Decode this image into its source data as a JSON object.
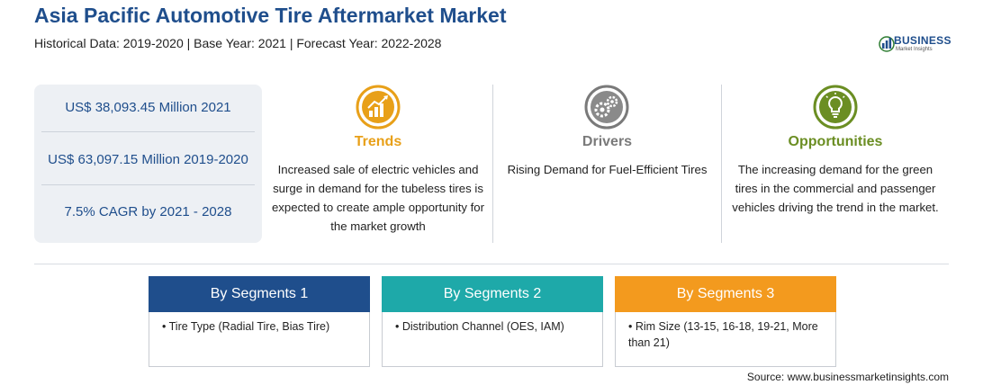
{
  "header": {
    "title": "Asia Pacific Automotive Tire Aftermarket Market",
    "subtitle": "Historical Data: 2019-2020 | Base Year: 2021 | Forecast Year: 2022-2028"
  },
  "logo": {
    "word": "BUSINESS",
    "sub": "Market Insights",
    "icon": "bar-chart-globe-icon"
  },
  "stats": [
    "US$ 38,093.45 Million 2021",
    "US$ 63,097.15 Million 2019-2020",
    "7.5% CAGR by 2021 - 2028"
  ],
  "trends": {
    "heading": "Trends",
    "color": "#e8a019",
    "icon": "trend-chart-icon",
    "text": "Increased sale of electric vehicles and surge in demand for the tubeless tires is expected to create ample opportunity for the market growth"
  },
  "drivers": {
    "heading": "Drivers",
    "color": "#7a7a7a",
    "icon": "gears-icon",
    "text": "Rising Demand for Fuel-Efficient Tires"
  },
  "opportunities": {
    "heading": "Opportunities",
    "color": "#6b8e23",
    "icon": "lightbulb-icon",
    "text": "The increasing demand for the green tires in the commercial and passenger vehicles driving the trend in the market."
  },
  "segments": [
    {
      "heading": "By Segments 1",
      "color": "#1f4e8c",
      "item": "• Tire Type (Radial Tire, Bias Tire)"
    },
    {
      "heading": "By Segments 2",
      "color": "#1ea9a9",
      "item": "• Distribution Channel (OES, IAM)"
    },
    {
      "heading": "By Segments 3",
      "color": "#f39a1e",
      "item": "• Rim Size (13-15, 16-18, 19-21, More than 21)"
    }
  ],
  "source": "Source: www.businessmarketinsights.com"
}
